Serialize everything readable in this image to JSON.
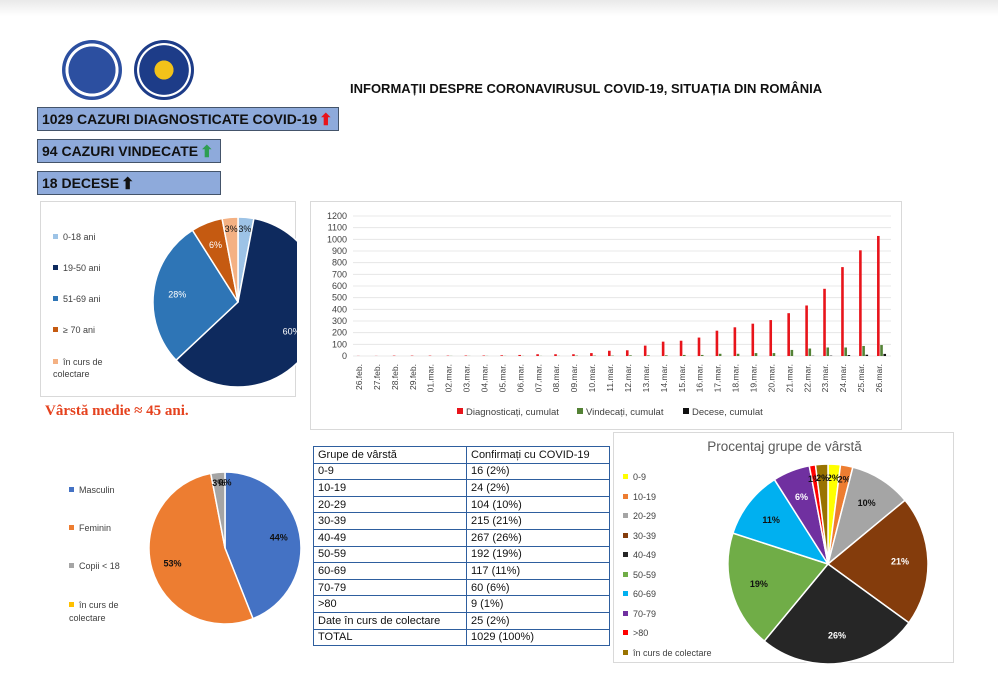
{
  "header": {
    "title": "INFORMAȚII DESPRE CORONAVIRUSUL COVID-19, SITUAȚIA DIN ROMÂNIA"
  },
  "stats": {
    "cases": "1029 CAZURI DIAGNOSTICATE COVID-19",
    "recovered": "94 CAZURI VINDECATE",
    "deaths": "18 DECESE"
  },
  "colors": {
    "stat_box": "#8eaadb",
    "arrow_up_red": "#e8141b",
    "arrow_up_green": "#2e9e52",
    "arrow_up_black": "#111111",
    "average_text": "#e5421e"
  },
  "average_age": "Vârstă medie ≈ 45 ani.",
  "chart_data": [
    {
      "type": "pie",
      "legend": [
        "0-18 ani",
        "19-50 ani",
        "51-69 ani",
        "≥ 70 ani",
        "în curs de colectare"
      ],
      "values": [
        3,
        60,
        28,
        6,
        3
      ],
      "labels": [
        "3%",
        "60%",
        "28%",
        "6%",
        "3%"
      ],
      "colors": [
        "#9dc3e6",
        "#0e2a5e",
        "#2e75b6",
        "#c55a11",
        "#f4b183"
      ],
      "legend_position": "left"
    },
    {
      "type": "bar",
      "categories": [
        "26.feb.",
        "27.feb.",
        "28.feb.",
        "29.feb.",
        "01.mar.",
        "02.mar.",
        "03.mar.",
        "04.mar.",
        "05.mar.",
        "06.mar.",
        "07.mar.",
        "08.mar.",
        "09.mar.",
        "10.mar.",
        "11.mar.",
        "12.mar.",
        "13.mar.",
        "14.mar.",
        "15.mar.",
        "16.mar.",
        "17.mar.",
        "18.mar.",
        "19.mar.",
        "20.mar.",
        "21.mar.",
        "22.mar.",
        "23.mar.",
        "24.mar.",
        "25.mar.",
        "26.mar."
      ],
      "series": [
        {
          "name": "Diagnosticați, cumulat",
          "color": "#e8141b",
          "values": [
            1,
            1,
            3,
            3,
            3,
            3,
            4,
            4,
            6,
            9,
            15,
            15,
            15,
            25,
            45,
            49,
            89,
            123,
            131,
            158,
            217,
            246,
            277,
            308,
            367,
            433,
            576,
            762,
            906,
            1029
          ]
        },
        {
          "name": "Vindecați, cumulat",
          "color": "#548235",
          "values": [
            0,
            0,
            0,
            0,
            0,
            1,
            1,
            1,
            1,
            1,
            1,
            1,
            3,
            3,
            3,
            6,
            6,
            6,
            9,
            9,
            19,
            19,
            25,
            25,
            52,
            64,
            73,
            73,
            86,
            94
          ]
        },
        {
          "name": "Decese, cumulat",
          "color": "#111111",
          "values": [
            0,
            0,
            0,
            0,
            0,
            0,
            0,
            0,
            0,
            0,
            0,
            0,
            0,
            0,
            0,
            0,
            0,
            0,
            0,
            0,
            0,
            0,
            0,
            0,
            0,
            2,
            3,
            8,
            11,
            18
          ]
        }
      ],
      "ylim": [
        0,
        1200
      ],
      "yticks": [
        0,
        100,
        200,
        300,
        400,
        500,
        600,
        700,
        800,
        900,
        1000,
        1100,
        1200
      ],
      "legend_position": "bottom"
    },
    {
      "type": "pie",
      "legend": [
        "Masculin",
        "Feminin",
        "Copii < 18",
        "în curs de colectare"
      ],
      "values": [
        44,
        53,
        3,
        0
      ],
      "labels": [
        "44%",
        "53%",
        "3%",
        "0%"
      ],
      "colors": [
        "#4472c4",
        "#ed7d31",
        "#a5a5a5",
        "#ffc000"
      ],
      "legend_position": "left"
    },
    {
      "type": "table",
      "columns": [
        "Grupe de vârstă",
        "Confirmați cu COVID-19"
      ],
      "rows": [
        [
          "0-9",
          "16 (2%)"
        ],
        [
          "10-19",
          "24 (2%)"
        ],
        [
          "20-29",
          "104 (10%)"
        ],
        [
          "30-39",
          "215 (21%)"
        ],
        [
          "40-49",
          "267 (26%)"
        ],
        [
          "50-59",
          "192 (19%)"
        ],
        [
          "60-69",
          "117 (11%)"
        ],
        [
          "70-79",
          "60 (6%)"
        ],
        [
          ">80",
          "9 (1%)"
        ],
        [
          "Date în curs de colectare",
          "25 (2%)"
        ],
        [
          "TOTAL",
          "1029 (100%)"
        ]
      ]
    },
    {
      "type": "pie",
      "title": "Procentaj grupe de vârstă",
      "legend": [
        "0-9",
        "10-19",
        "20-29",
        "30-39",
        "40-49",
        "50-59",
        "60-69",
        "70-79",
        ">80",
        "în curs de colectare"
      ],
      "values": [
        2,
        2,
        10,
        21,
        26,
        19,
        11,
        6,
        1,
        2
      ],
      "labels": [
        "2%",
        "2%",
        "10%",
        "21%",
        "26%",
        "19%",
        "11%",
        "6%",
        "1%",
        "2%"
      ],
      "colors": [
        "#ffff00",
        "#ed7d31",
        "#a5a5a5",
        "#843c0c",
        "#262626",
        "#70ad47",
        "#00b0f0",
        "#7030a0",
        "#ff0000",
        "#997300"
      ],
      "legend_position": "left"
    }
  ]
}
